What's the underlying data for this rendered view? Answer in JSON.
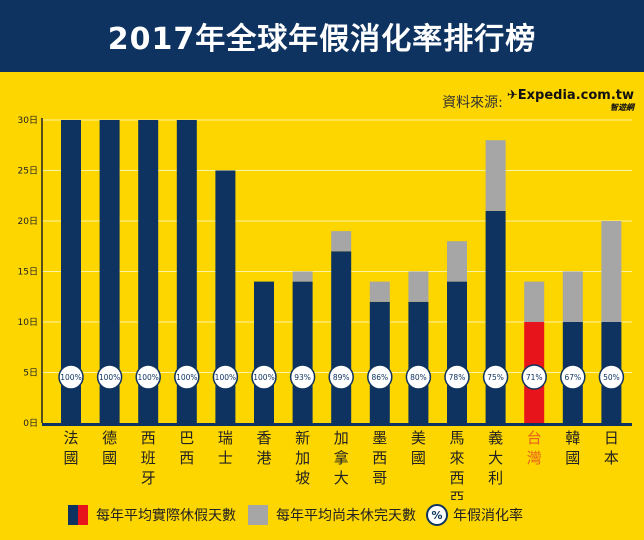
{
  "header": {
    "title": "2017年全球年假消化率排行榜"
  },
  "source": {
    "label": "資料來源:",
    "logo_text": "Expedia.com.tw",
    "logo_sub": "智遊網"
  },
  "colors": {
    "background": "#FDD600",
    "used": "#0E3360",
    "unused": "#A6A6A6",
    "highlight": "#E8141C",
    "highlight_label": "#E8601C"
  },
  "legend": {
    "used": "每年平均實際休假天數",
    "unused": "每年平均尚未休完天數",
    "rate_symbol": "%",
    "rate": "年假消化率"
  },
  "chart_data": {
    "type": "bar",
    "stacked": true,
    "title": "2017年全球年假消化率排行榜",
    "ylim": [
      0,
      30
    ],
    "yticks": [
      "0日",
      "5日",
      "10日",
      "15日",
      "20日",
      "25日",
      "30日"
    ],
    "grid": true,
    "legend_placement": "bottom",
    "categories": [
      "法國",
      "德國",
      "西班牙",
      "巴西",
      "瑞士",
      "香港",
      "新加坡",
      "加拿大",
      "墨西哥",
      "美國",
      "馬來西亞",
      "義大利",
      "台灣",
      "韓國",
      "日本"
    ],
    "highlight_category": "台灣",
    "series": [
      {
        "name": "每年平均實際休假天數",
        "values": [
          30,
          30,
          30,
          30,
          25,
          14,
          14,
          17,
          12,
          12,
          14,
          21,
          10,
          10,
          10
        ]
      },
      {
        "name": "每年平均尚未休完天數",
        "values": [
          0,
          0,
          0,
          0,
          0,
          0,
          1,
          2,
          2,
          3,
          4,
          7,
          4,
          5,
          10
        ]
      }
    ],
    "rate_labels": [
      "100%",
      "100%",
      "100%",
      "100%",
      "100%",
      "100%",
      "93%",
      "89%",
      "86%",
      "80%",
      "78%",
      "75%",
      "71%",
      "67%",
      "50%"
    ]
  }
}
